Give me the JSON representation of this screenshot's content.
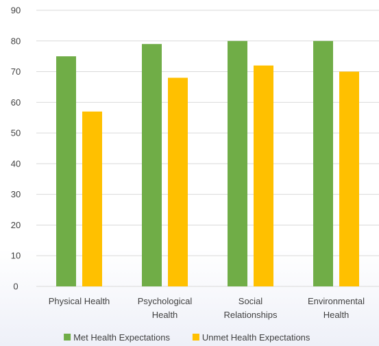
{
  "chart_data": {
    "type": "bar",
    "categories": [
      [
        "Physical Health"
      ],
      [
        "Psychological",
        "Health"
      ],
      [
        "Social",
        "Relationships"
      ],
      [
        "Environmental",
        "Health"
      ]
    ],
    "series": [
      {
        "name": "Met Health Expectations",
        "values": [
          75,
          79,
          80,
          80
        ],
        "color": "#70ad47"
      },
      {
        "name": "Unmet Health Expectations",
        "values": [
          57,
          68,
          72,
          70
        ],
        "color": "#ffc000"
      }
    ],
    "ylim": [
      0,
      90
    ],
    "yticks": [
      0,
      10,
      20,
      30,
      40,
      50,
      60,
      70,
      80,
      90
    ],
    "grid": true,
    "legend": "bottom",
    "gridline_color": "#d9d9d9"
  }
}
